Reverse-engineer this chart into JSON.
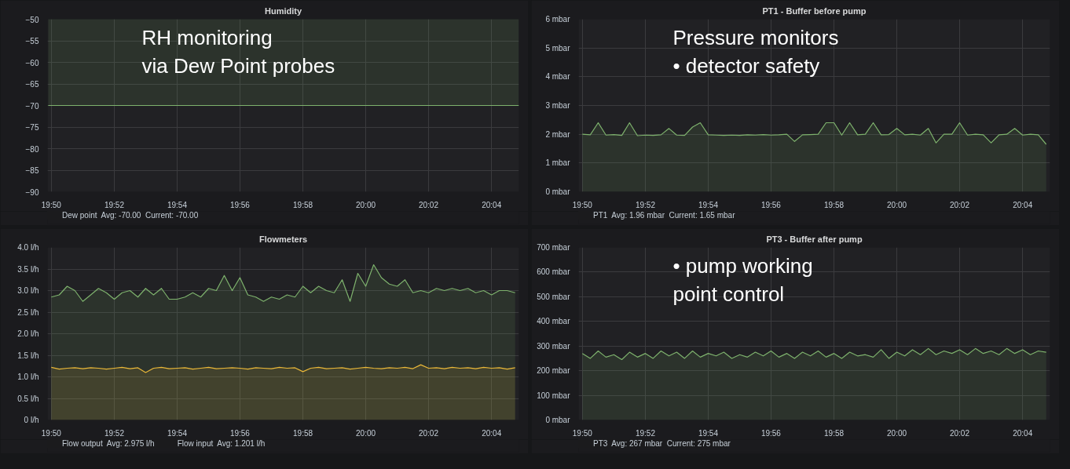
{
  "chart_data": [
    {
      "type": "area",
      "title": "Humidity",
      "x": [
        19.8317,
        20.0812
      ],
      "series": [
        {
          "name": "Dew point  Avg: -70.00  Current: -70.00",
          "color": "#7eb26d",
          "values": [
            -70,
            -70
          ]
        }
      ],
      "xlim": [
        19.8313,
        20.0812
      ],
      "xticks": [
        {
          "value": 19.8333,
          "label": "19:50"
        },
        {
          "value": 19.8667,
          "label": "19:52"
        },
        {
          "value": 19.9,
          "label": "19:54"
        },
        {
          "value": 19.9333,
          "label": "19:56"
        },
        {
          "value": 19.9667,
          "label": "19:58"
        },
        {
          "value": 20.0,
          "label": "20:00"
        },
        {
          "value": 20.0333,
          "label": "20:02"
        },
        {
          "value": 20.0667,
          "label": "20:04"
        }
      ],
      "ylim": [
        -90,
        -50
      ],
      "yticks": [
        -90,
        -85,
        -80,
        -75,
        -70,
        -65,
        -60,
        -55,
        -50
      ],
      "grid": true,
      "legend": "bottom",
      "annotations": [
        "RH monitoring\nvia Dew Point probes"
      ]
    },
    {
      "type": "area",
      "title": "PT1 - Buffer before pump",
      "x": [
        19.8333,
        19.8375,
        19.8417,
        19.8458,
        19.85,
        19.8542,
        19.8583,
        19.8625,
        19.8667,
        19.8708,
        19.875,
        19.8792,
        19.8833,
        19.8875,
        19.8917,
        19.8958,
        19.9,
        19.9042,
        19.9083,
        19.9125,
        19.9167,
        19.9208,
        19.925,
        19.9292,
        19.9333,
        19.9375,
        19.9417,
        19.9458,
        19.95,
        19.9542,
        19.9583,
        19.9625,
        19.9667,
        19.9708,
        19.975,
        19.9792,
        19.9833,
        19.9875,
        19.9917,
        19.9958,
        20.0,
        20.0042,
        20.0083,
        20.0125,
        20.0167,
        20.0208,
        20.025,
        20.0292,
        20.0333,
        20.0375,
        20.0417,
        20.0458,
        20.05,
        20.0542,
        20.0583,
        20.0625,
        20.0667,
        20.0708,
        20.075,
        20.0792
      ],
      "series": [
        {
          "name": "PT1  Avg: 1.96 mbar  Current: 1.65 mbar",
          "color": "#7eb26d",
          "values": [
            2.0,
            1.98,
            2.4,
            1.97,
            1.99,
            1.96,
            2.4,
            1.95,
            1.97,
            1.96,
            1.98,
            2.2,
            1.97,
            1.96,
            2.25,
            2.4,
            1.98,
            1.97,
            1.96,
            1.97,
            1.96,
            1.98,
            1.97,
            1.99,
            1.97,
            1.98,
            2.0,
            1.75,
            1.98,
            1.99,
            2.0,
            2.4,
            2.4,
            1.97,
            2.4,
            1.98,
            2.0,
            2.4,
            1.98,
            1.99,
            2.2,
            1.98,
            2.0,
            1.97,
            2.2,
            1.7,
            2.0,
            2.0,
            2.4,
            1.97,
            2.0,
            1.98,
            1.7,
            1.98,
            2.0,
            2.2,
            1.97,
            2.0,
            1.98,
            1.65
          ]
        }
      ],
      "xlim": [
        19.8313,
        20.0812
      ],
      "xticks": [
        {
          "value": 19.8333,
          "label": "19:50"
        },
        {
          "value": 19.8667,
          "label": "19:52"
        },
        {
          "value": 19.9,
          "label": "19:54"
        },
        {
          "value": 19.9333,
          "label": "19:56"
        },
        {
          "value": 19.9667,
          "label": "19:58"
        },
        {
          "value": 20.0,
          "label": "20:00"
        },
        {
          "value": 20.0333,
          "label": "20:02"
        },
        {
          "value": 20.0667,
          "label": "20:04"
        }
      ],
      "ylim": [
        0,
        6
      ],
      "yticks": [
        {
          "value": 0,
          "label": "0 mbar"
        },
        {
          "value": 1,
          "label": "1 mbar"
        },
        {
          "value": 2,
          "label": "2 mbar"
        },
        {
          "value": 3,
          "label": "3 mbar"
        },
        {
          "value": 4,
          "label": "4 mbar"
        },
        {
          "value": 5,
          "label": "5 mbar"
        },
        {
          "value": 6,
          "label": "6 mbar"
        }
      ],
      "grid": true,
      "legend": "bottom",
      "annotations": [
        "Pressure monitors\n• detector safety"
      ]
    },
    {
      "type": "area",
      "title": "Flowmeters",
      "x": [
        19.8333,
        19.8375,
        19.8417,
        19.8458,
        19.85,
        19.8542,
        19.8583,
        19.8625,
        19.8667,
        19.8708,
        19.875,
        19.8792,
        19.8833,
        19.8875,
        19.8917,
        19.8958,
        19.9,
        19.9042,
        19.9083,
        19.9125,
        19.9167,
        19.9208,
        19.925,
        19.9292,
        19.9333,
        19.9375,
        19.9417,
        19.9458,
        19.95,
        19.9542,
        19.9583,
        19.9625,
        19.9667,
        19.9708,
        19.975,
        19.9792,
        19.9833,
        19.9875,
        19.9917,
        19.9958,
        20.0,
        20.0042,
        20.0083,
        20.0125,
        20.0167,
        20.0208,
        20.025,
        20.0292,
        20.0333,
        20.0375,
        20.0417,
        20.0458,
        20.05,
        20.0542,
        20.0583,
        20.0625,
        20.0667,
        20.0708,
        20.075,
        20.0792
      ],
      "series": [
        {
          "name": "Flow output  Avg: 2.975 l/h",
          "color": "#7eb26d",
          "values": [
            2.85,
            2.9,
            3.1,
            3.0,
            2.75,
            2.9,
            3.05,
            2.95,
            2.8,
            2.95,
            3.0,
            2.85,
            3.05,
            2.9,
            3.05,
            2.8,
            2.8,
            2.85,
            2.95,
            2.85,
            3.05,
            3.0,
            3.35,
            3.0,
            3.3,
            2.9,
            2.85,
            2.75,
            2.85,
            2.8,
            2.9,
            2.85,
            3.1,
            2.95,
            3.1,
            3.0,
            2.95,
            3.25,
            2.75,
            3.4,
            3.1,
            3.6,
            3.3,
            3.15,
            3.1,
            3.25,
            2.95,
            3.0,
            2.95,
            3.05,
            3.0,
            3.05,
            3.0,
            3.05,
            2.95,
            3.0,
            2.9,
            3.0,
            3.0,
            2.95
          ]
        },
        {
          "name": "Flow input  Avg: 1.201 l/h",
          "color": "#eab839",
          "values": [
            1.22,
            1.18,
            1.2,
            1.21,
            1.19,
            1.21,
            1.2,
            1.18,
            1.2,
            1.22,
            1.19,
            1.21,
            1.1,
            1.2,
            1.22,
            1.19,
            1.2,
            1.21,
            1.18,
            1.2,
            1.22,
            1.19,
            1.2,
            1.21,
            1.2,
            1.18,
            1.21,
            1.2,
            1.19,
            1.22,
            1.2,
            1.21,
            1.12,
            1.2,
            1.22,
            1.19,
            1.2,
            1.21,
            1.18,
            1.2,
            1.22,
            1.2,
            1.19,
            1.21,
            1.2,
            1.22,
            1.19,
            1.28,
            1.2,
            1.21,
            1.19,
            1.22,
            1.2,
            1.21,
            1.19,
            1.22,
            1.2,
            1.21,
            1.18,
            1.21
          ]
        }
      ],
      "xlim": [
        19.8313,
        20.0812
      ],
      "xticks": [
        {
          "value": 19.8333,
          "label": "19:50"
        },
        {
          "value": 19.8667,
          "label": "19:52"
        },
        {
          "value": 19.9,
          "label": "19:54"
        },
        {
          "value": 19.9333,
          "label": "19:56"
        },
        {
          "value": 19.9667,
          "label": "19:58"
        },
        {
          "value": 20.0,
          "label": "20:00"
        },
        {
          "value": 20.0333,
          "label": "20:02"
        },
        {
          "value": 20.0667,
          "label": "20:04"
        }
      ],
      "ylim": [
        0,
        4
      ],
      "yticks": [
        {
          "value": 0,
          "label": "0 l/h"
        },
        {
          "value": 0.5,
          "label": "0.5 l/h"
        },
        {
          "value": 1,
          "label": "1.0 l/h"
        },
        {
          "value": 1.5,
          "label": "1.5 l/h"
        },
        {
          "value": 2,
          "label": "2.0 l/h"
        },
        {
          "value": 2.5,
          "label": "2.5 l/h"
        },
        {
          "value": 3,
          "label": "3.0 l/h"
        },
        {
          "value": 3.5,
          "label": "3.5 l/h"
        },
        {
          "value": 4,
          "label": "4.0 l/h"
        }
      ],
      "grid": true,
      "legend": "bottom"
    },
    {
      "type": "area",
      "title": "PT3 - Buffer after pump",
      "x": [
        19.8333,
        19.8375,
        19.8417,
        19.8458,
        19.85,
        19.8542,
        19.8583,
        19.8625,
        19.8667,
        19.8708,
        19.875,
        19.8792,
        19.8833,
        19.8875,
        19.8917,
        19.8958,
        19.9,
        19.9042,
        19.9083,
        19.9125,
        19.9167,
        19.9208,
        19.925,
        19.9292,
        19.9333,
        19.9375,
        19.9417,
        19.9458,
        19.95,
        19.9542,
        19.9583,
        19.9625,
        19.9667,
        19.9708,
        19.975,
        19.9792,
        19.9833,
        19.9875,
        19.9917,
        19.9958,
        20.0,
        20.0042,
        20.0083,
        20.0125,
        20.0167,
        20.0208,
        20.025,
        20.0292,
        20.0333,
        20.0375,
        20.0417,
        20.0458,
        20.05,
        20.0542,
        20.0583,
        20.0625,
        20.0667,
        20.0708,
        20.075,
        20.0792
      ],
      "series": [
        {
          "name": "PT3  Avg: 267 mbar  Current: 275 mbar",
          "color": "#7eb26d",
          "values": [
            270,
            250,
            280,
            255,
            265,
            245,
            275,
            255,
            270,
            250,
            280,
            260,
            275,
            250,
            280,
            255,
            270,
            260,
            275,
            250,
            265,
            255,
            275,
            260,
            280,
            255,
            270,
            250,
            275,
            260,
            280,
            255,
            270,
            250,
            275,
            260,
            265,
            255,
            285,
            250,
            275,
            260,
            285,
            265,
            290,
            265,
            280,
            270,
            285,
            265,
            290,
            270,
            280,
            265,
            290,
            270,
            285,
            265,
            280,
            275
          ]
        }
      ],
      "xlim": [
        19.8313,
        20.0812
      ],
      "xticks": [
        {
          "value": 19.8333,
          "label": "19:50"
        },
        {
          "value": 19.8667,
          "label": "19:52"
        },
        {
          "value": 19.9,
          "label": "19:54"
        },
        {
          "value": 19.9333,
          "label": "19:56"
        },
        {
          "value": 19.9667,
          "label": "19:58"
        },
        {
          "value": 20.0,
          "label": "20:00"
        },
        {
          "value": 20.0333,
          "label": "20:02"
        },
        {
          "value": 20.0667,
          "label": "20:04"
        }
      ],
      "ylim": [
        0,
        700
      ],
      "yticks": [
        {
          "value": 0,
          "label": "0 mbar"
        },
        {
          "value": 100,
          "label": "100 mbar"
        },
        {
          "value": 200,
          "label": "200 mbar"
        },
        {
          "value": 300,
          "label": "300 mbar"
        },
        {
          "value": 400,
          "label": "400 mbar"
        },
        {
          "value": 500,
          "label": "500 mbar"
        },
        {
          "value": 600,
          "label": "600 mbar"
        },
        {
          "value": 700,
          "label": "700 mbar"
        }
      ],
      "grid": true,
      "legend": "bottom",
      "annotations": [
        "• pump working\n  point control"
      ]
    }
  ]
}
